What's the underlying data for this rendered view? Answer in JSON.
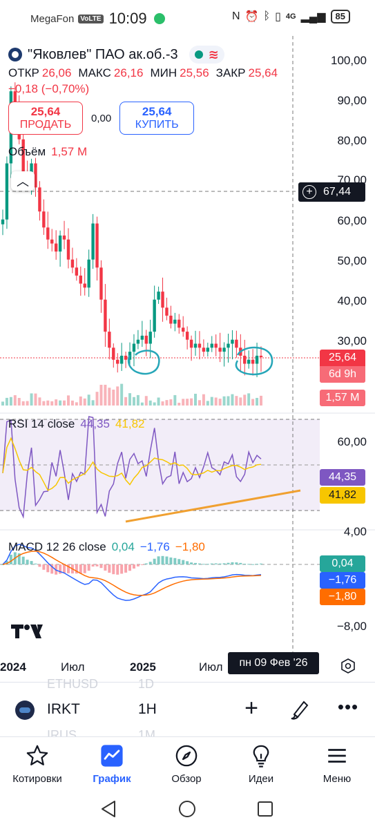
{
  "status_bar": {
    "carrier": "MegaFon",
    "volte": "VoLTE",
    "time": "10:09",
    "network": "4G",
    "battery": "85"
  },
  "chart": {
    "symbol_title": "\"Яковлев\" ПАО ак.об.-3",
    "ohlc": [
      {
        "key": "ОТКР",
        "value": "26,06"
      },
      {
        "key": "МАКС",
        "value": "26,16"
      },
      {
        "key": "МИН",
        "value": "25,56"
      },
      {
        "key": "ЗАКР",
        "value": "25,64"
      }
    ],
    "change": "−0,18 (−0,70%)",
    "sell": {
      "price": "25,64",
      "label": "ПРОДАТЬ"
    },
    "spread": "0,00",
    "buy": {
      "price": "25,64",
      "label": "КУПИТЬ"
    },
    "volume_label": "Объём",
    "volume_value": "1,57 M",
    "crosshair_price": "67,44",
    "last_price": "25,64",
    "countdown": "6d 9h",
    "volume_tag": "1,57 M",
    "rsi": {
      "label": "RSI 14 close",
      "value": "44,35",
      "ma": "41,82"
    },
    "macd": {
      "label": "MACD 12 26 close",
      "hist": "0,04",
      "macd": "−1,76",
      "signal": "−1,80"
    },
    "time_labels": [
      "2024",
      "Июл",
      "2025",
      "Июл"
    ],
    "crosshair_date": "пн 09 Фев '26",
    "colors": {
      "up": "#089981",
      "down": "#f23645",
      "rsi": "#7e57c2",
      "rsi_ma": "#f7c600",
      "macd": "#2962ff",
      "signal": "#ff6d00",
      "trend": "#f0a030",
      "annot": "#26a6b8"
    }
  },
  "chart_data": {
    "type": "candlestick",
    "price_axis": {
      "ticks": [
        "100,00",
        "90,00",
        "80,00",
        "70,00",
        "60,00",
        "50,00",
        "40,00",
        "30,00"
      ],
      "ylim": [
        22,
        100
      ]
    },
    "rsi_axis": {
      "ticks": [
        "60,00"
      ]
    },
    "macd_axis": {
      "ticks": [
        "4,00",
        "−8,00"
      ]
    },
    "x_ticks": [
      "2024",
      "Июл",
      "2025",
      "Июл"
    ],
    "approx_closes": [
      60,
      74,
      92,
      88,
      80,
      72,
      70,
      74,
      68,
      62,
      58,
      55,
      54,
      52,
      56,
      55,
      50,
      48,
      46,
      44,
      43,
      50,
      59,
      48,
      40,
      32,
      28,
      25,
      24,
      26,
      25,
      27,
      29,
      30,
      31,
      29,
      32,
      40,
      42,
      38,
      36,
      34,
      35,
      33,
      32,
      30,
      28,
      29,
      28,
      27,
      28,
      29,
      28,
      27,
      28,
      29,
      30,
      28,
      26,
      24,
      25,
      24,
      26,
      25.64
    ]
  },
  "symbol_bar": {
    "ghost_top_symbol": "ETHUSD",
    "ghost_top_tf": "1D",
    "symbol": "IRKT",
    "timeframe": "1H",
    "ghost_bottom_symbol": "IRUS",
    "ghost_bottom_tf": "1M"
  },
  "nav": {
    "items": [
      {
        "label": "Котировки",
        "icon": "star-icon"
      },
      {
        "label": "График",
        "icon": "chart-icon"
      },
      {
        "label": "Обзор",
        "icon": "compass-icon"
      },
      {
        "label": "Идеи",
        "icon": "lightbulb-icon"
      },
      {
        "label": "Меню",
        "icon": "menu-icon"
      }
    ],
    "active": "График"
  }
}
